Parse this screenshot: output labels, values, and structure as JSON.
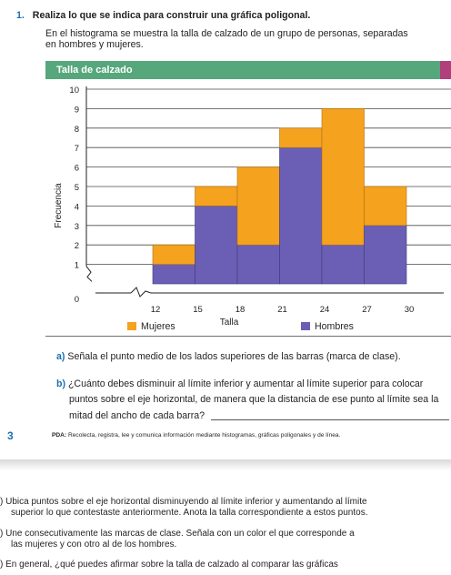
{
  "exercise": {
    "number": "1.",
    "instruction": "Realiza lo que se indica para construir una gráfica poligonal.",
    "intro_line1": "En el histograma se muestra la talla de calzado de un grupo de personas, separadas",
    "intro_line2": "en hombres y mujeres."
  },
  "chart_header": {
    "title": "Talla de calzado"
  },
  "colors": {
    "mujeres": "#f5a21e",
    "hombres": "#6b5fb5",
    "header": "#56a77b",
    "accent": "#b13f7d"
  },
  "chart_data": {
    "type": "bar",
    "stacked": true,
    "title": "Talla de calzado",
    "xlabel": "Talla",
    "ylabel": "Frecuencia",
    "x_ticks": [
      "12",
      "15",
      "18",
      "21",
      "24",
      "27",
      "30"
    ],
    "y_ticks": [
      "0",
      "1",
      "2",
      "3",
      "4",
      "5",
      "6",
      "7",
      "8",
      "9",
      "10"
    ],
    "bins": [
      [
        12,
        15
      ],
      [
        15,
        18
      ],
      [
        18,
        21
      ],
      [
        21,
        24
      ],
      [
        24,
        27
      ],
      [
        27,
        30
      ]
    ],
    "ylim": [
      0,
      10
    ],
    "grid": true,
    "legend_position": "bottom",
    "series": [
      {
        "name": "Hombres",
        "values": [
          1,
          4,
          2,
          7,
          2,
          3
        ]
      },
      {
        "name": "Mujeres",
        "values": [
          1,
          1,
          4,
          1,
          7,
          2
        ]
      }
    ]
  },
  "questions": {
    "a_letter": "a)",
    "a_text": "Señala el punto medio de los lados superiores de las barras (marca de clase).",
    "b_letter": "b)",
    "b_line1": "¿Cuánto debes disminuir al límite inferior y aumentar al límite superior para colocar",
    "b_line2": "puntos sobre el eje horizontal, de manera que la distancia de ese punto al límite sea la",
    "b_line3": "mitad del ancho de cada barra?"
  },
  "pda": {
    "side_number": "3",
    "label": "PDA:",
    "text": "Recolecta, registra, lee y comunica información mediante histogramas, gráficas poligonales y de línea."
  },
  "next_page": {
    "c_marker": ")",
    "c_line1": "Ubica puntos sobre el eje horizontal disminuyendo al límite inferior y aumentando al límite",
    "c_line2": "superior lo que contestaste anteriormente. Anota la talla correspondiente a estos puntos.",
    "d_marker": ")",
    "d_line1": "Une consecutivamente las marcas de clase. Señala con un color el que corresponde a",
    "d_line2": "las mujeres y con otro al de los hombres.",
    "e_marker": ")",
    "e_line1": "En general, ¿qué puedes afirmar sobre la talla de calzado al comparar las gráficas"
  }
}
